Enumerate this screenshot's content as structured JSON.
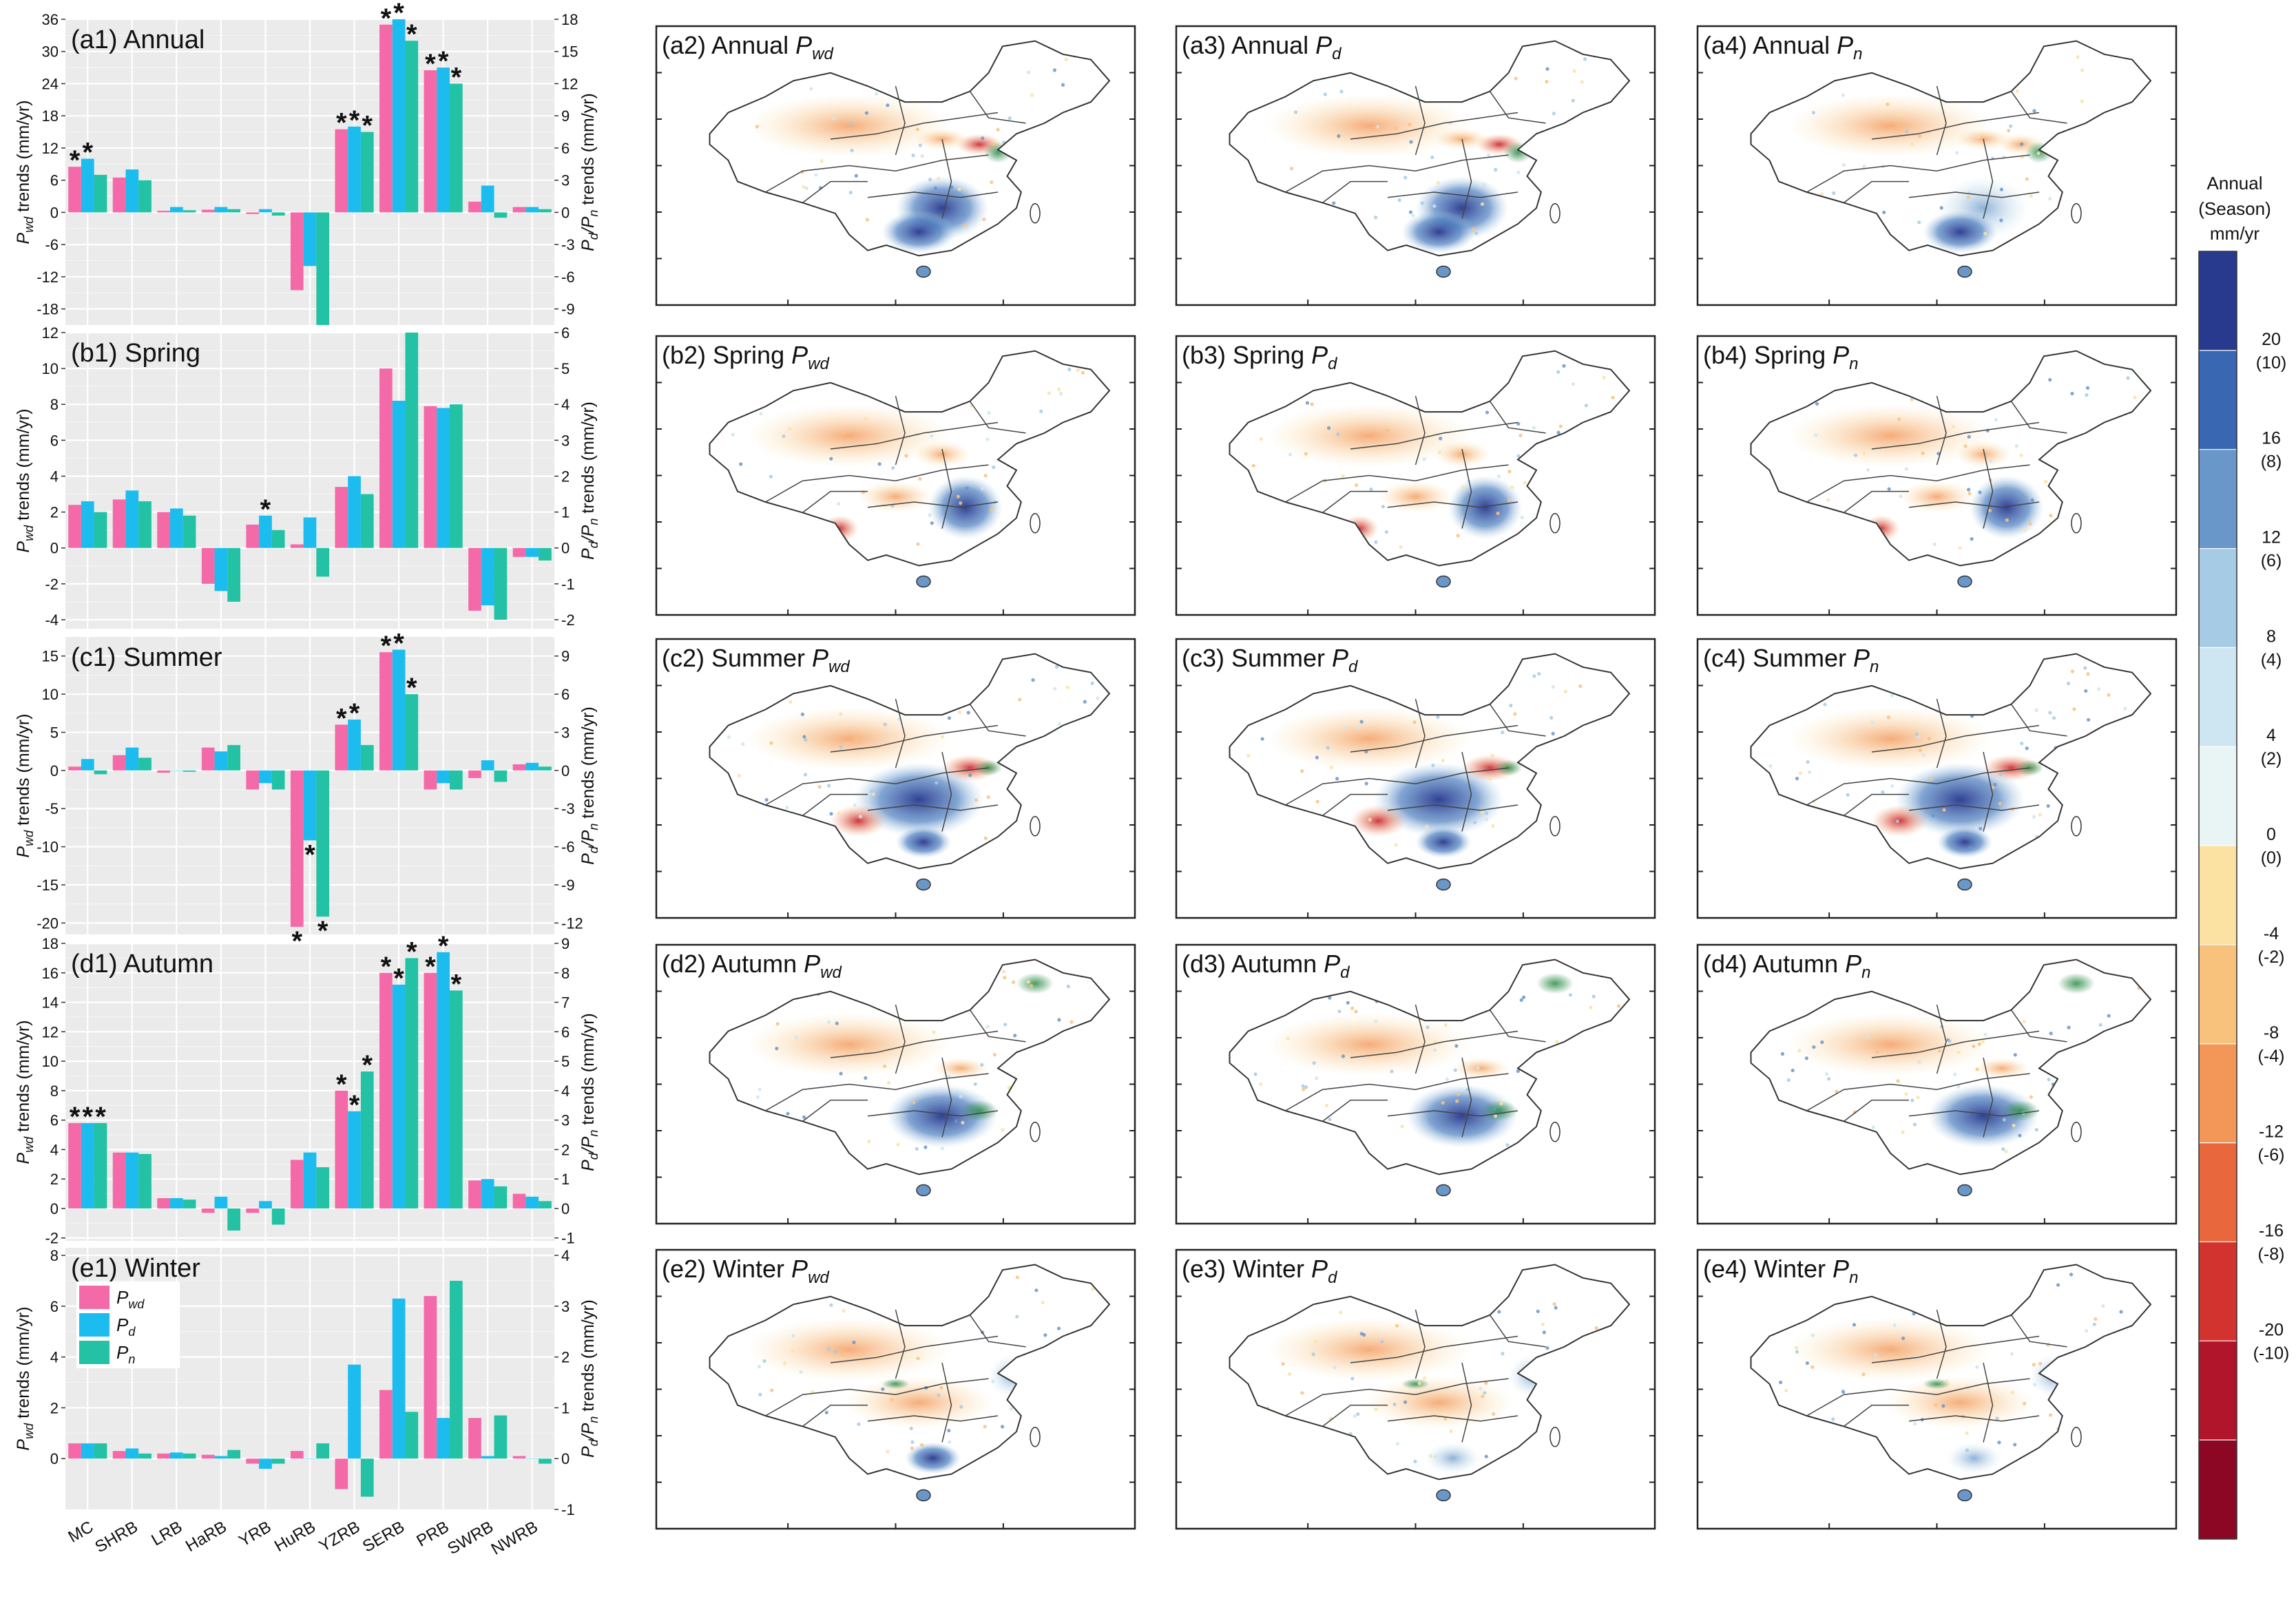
{
  "categories": [
    "MC",
    "SHRB",
    "LRB",
    "HaRB",
    "YRB",
    "HuRB",
    "YZRB",
    "SERB",
    "PRB",
    "SWRB",
    "NWRB"
  ],
  "series_names": [
    "P_wd",
    "P_d",
    "P_n"
  ],
  "series_colors": {
    "P_wd": "#f46aa8",
    "P_d": "#1cbcef",
    "P_n": "#23c2a4"
  },
  "left_axis_label_main": "P",
  "left_axis_label_sub": "wd",
  "left_axis_label_rest": " trends (mm/yr)",
  "right_axis_label_main": "P",
  "right_axis_label_sub": "d",
  "right_axis_label_mid": "/P",
  "right_axis_label_sub2": "n",
  "right_axis_label_rest": " trends (mm/yr)",
  "chart_data": [
    {
      "panel": "(a1) Annual",
      "type": "bar",
      "categories": [
        "MC",
        "SHRB",
        "LRB",
        "HaRB",
        "YRB",
        "HuRB",
        "YZRB",
        "SERB",
        "PRB",
        "SWRB",
        "NWRB"
      ],
      "left_ylim": [
        -21,
        36
      ],
      "left_ticks": [
        -18,
        -12,
        -6,
        0,
        6,
        12,
        18,
        24,
        30,
        36
      ],
      "right_ylim": [
        -10.5,
        18
      ],
      "right_ticks": [
        -9,
        -6,
        -3,
        0,
        3,
        6,
        9,
        12,
        15,
        18
      ],
      "series": [
        {
          "name": "P_wd",
          "axis": "left",
          "values": [
            8.5,
            6.5,
            0.3,
            0.5,
            -0.3,
            -14.5,
            15.5,
            35.0,
            26.5,
            2.0,
            1.0
          ]
        },
        {
          "name": "P_d",
          "axis": "right",
          "values": [
            5.0,
            4.0,
            0.5,
            0.5,
            0.3,
            -5.0,
            8.0,
            18.0,
            13.5,
            2.5,
            0.5
          ]
        },
        {
          "name": "P_n",
          "axis": "right",
          "values": [
            3.5,
            3.0,
            0.2,
            0.3,
            -0.3,
            -10.5,
            7.5,
            16.0,
            12.0,
            -0.5,
            0.3
          ]
        }
      ],
      "significance": [
        {
          "category": "MC",
          "series": "P_wd",
          "mark": "*"
        },
        {
          "category": "MC",
          "series": "P_d",
          "mark": "*"
        },
        {
          "category": "YZRB",
          "series": "P_wd",
          "mark": "*"
        },
        {
          "category": "YZRB",
          "series": "P_d",
          "mark": "*"
        },
        {
          "category": "YZRB",
          "series": "P_n",
          "mark": "*"
        },
        {
          "category": "SERB",
          "series": "P_wd",
          "mark": "*"
        },
        {
          "category": "SERB",
          "series": "P_d",
          "mark": "*"
        },
        {
          "category": "SERB",
          "series": "P_n",
          "mark": "*"
        },
        {
          "category": "PRB",
          "series": "P_wd",
          "mark": "*"
        },
        {
          "category": "PRB",
          "series": "P_d",
          "mark": "*"
        },
        {
          "category": "PRB",
          "series": "P_n",
          "mark": "*"
        }
      ]
    },
    {
      "panel": "(b1) Spring",
      "type": "bar",
      "categories": [
        "MC",
        "SHRB",
        "LRB",
        "HaRB",
        "YRB",
        "HuRB",
        "YZRB",
        "SERB",
        "PRB",
        "SWRB",
        "NWRB"
      ],
      "left_ylim": [
        -4.5,
        12
      ],
      "left_ticks": [
        -4,
        -2,
        0,
        2,
        4,
        6,
        8,
        10,
        12
      ],
      "right_ylim": [
        -2.25,
        6
      ],
      "right_ticks": [
        -2,
        -1,
        0,
        1,
        2,
        3,
        4,
        5,
        6
      ],
      "series": [
        {
          "name": "P_wd",
          "axis": "left",
          "values": [
            2.4,
            2.7,
            2.0,
            -2.0,
            1.3,
            0.2,
            3.4,
            10.0,
            7.9,
            -3.5,
            -0.5
          ]
        },
        {
          "name": "P_d",
          "axis": "right",
          "values": [
            1.3,
            1.6,
            1.1,
            -1.2,
            0.9,
            0.85,
            2.0,
            4.1,
            3.9,
            -1.6,
            -0.25
          ]
        },
        {
          "name": "P_n",
          "axis": "right",
          "values": [
            1.0,
            1.3,
            0.9,
            -1.5,
            0.5,
            -0.8,
            1.5,
            6.0,
            4.0,
            -2.0,
            -0.35
          ]
        }
      ],
      "significance": [
        {
          "category": "YRB",
          "series": "P_d",
          "mark": "*"
        }
      ]
    },
    {
      "panel": "(c1) Summer",
      "type": "bar",
      "categories": [
        "MC",
        "SHRB",
        "LRB",
        "HaRB",
        "YRB",
        "HuRB",
        "YZRB",
        "SERB",
        "PRB",
        "SWRB",
        "NWRB"
      ],
      "left_ylim": [
        -21.5,
        17.5
      ],
      "left_ticks": [
        -20,
        -15,
        -10,
        -5,
        0,
        5,
        10,
        15
      ],
      "right_ylim": [
        -12.9,
        10.5
      ],
      "right_ticks": [
        -12,
        -9,
        -6,
        -3,
        0,
        3,
        6,
        9
      ],
      "series": [
        {
          "name": "P_wd",
          "axis": "left",
          "values": [
            0.5,
            2.0,
            -0.3,
            3.0,
            -2.5,
            -20.5,
            6.0,
            15.5,
            -2.5,
            -1.0,
            0.8
          ]
        },
        {
          "name": "P_d",
          "axis": "right",
          "values": [
            0.9,
            1.8,
            0.0,
            1.5,
            -1.0,
            -5.5,
            4.0,
            9.5,
            -1.0,
            0.8,
            0.6
          ]
        },
        {
          "name": "P_n",
          "axis": "right",
          "values": [
            -0.3,
            1.0,
            -0.1,
            2.0,
            -1.5,
            -11.5,
            2.0,
            6.0,
            -1.5,
            -0.9,
            0.3
          ]
        }
      ],
      "significance": [
        {
          "category": "YZRB",
          "series": "P_wd",
          "mark": "*"
        },
        {
          "category": "YZRB",
          "series": "P_d",
          "mark": "*"
        },
        {
          "category": "SERB",
          "series": "P_wd",
          "mark": "*"
        },
        {
          "category": "SERB",
          "series": "P_d",
          "mark": "*"
        },
        {
          "category": "SERB",
          "series": "P_n",
          "mark": "*"
        },
        {
          "category": "HuRB",
          "series": "P_wd",
          "mark": "*"
        },
        {
          "category": "HuRB",
          "series": "P_d",
          "mark": "*"
        },
        {
          "category": "HuRB",
          "series": "P_n",
          "mark": "*"
        }
      ]
    },
    {
      "panel": "(d1) Autumn",
      "type": "bar",
      "categories": [
        "MC",
        "SHRB",
        "LRB",
        "HaRB",
        "YRB",
        "HuRB",
        "YZRB",
        "SERB",
        "PRB",
        "SWRB",
        "NWRB"
      ],
      "left_ylim": [
        -2.2,
        18
      ],
      "left_ticks": [
        -2,
        0,
        2,
        4,
        6,
        8,
        10,
        12,
        14,
        16,
        18
      ],
      "right_ylim": [
        -1.1,
        9
      ],
      "right_ticks": [
        -1,
        0,
        1,
        2,
        3,
        4,
        5,
        6,
        7,
        8,
        9
      ],
      "series": [
        {
          "name": "P_wd",
          "axis": "left",
          "values": [
            5.8,
            3.8,
            0.7,
            -0.3,
            -0.3,
            3.3,
            8.0,
            16.0,
            16.0,
            1.9,
            1.0
          ]
        },
        {
          "name": "P_d",
          "axis": "right",
          "values": [
            2.9,
            1.9,
            0.35,
            0.4,
            0.25,
            1.9,
            3.3,
            7.6,
            8.7,
            1.0,
            0.4
          ]
        },
        {
          "name": "P_n",
          "axis": "right",
          "values": [
            2.9,
            1.85,
            0.3,
            -0.75,
            -0.55,
            1.4,
            4.65,
            8.5,
            7.4,
            0.75,
            0.25
          ]
        }
      ],
      "significance": [
        {
          "category": "MC",
          "series": "P_wd",
          "mark": "*"
        },
        {
          "category": "MC",
          "series": "P_d",
          "mark": "*"
        },
        {
          "category": "MC",
          "series": "P_n",
          "mark": "*"
        },
        {
          "category": "YZRB",
          "series": "P_wd",
          "mark": "*"
        },
        {
          "category": "YZRB",
          "series": "P_d",
          "mark": "*"
        },
        {
          "category": "YZRB",
          "series": "P_n",
          "mark": "*"
        },
        {
          "category": "SERB",
          "series": "P_wd",
          "mark": "*"
        },
        {
          "category": "SERB",
          "series": "P_d",
          "mark": "*"
        },
        {
          "category": "SERB",
          "series": "P_n",
          "mark": "*"
        },
        {
          "category": "PRB",
          "series": "P_wd",
          "mark": "*"
        },
        {
          "category": "PRB",
          "series": "P_d",
          "mark": "*"
        },
        {
          "category": "PRB",
          "series": "P_n",
          "mark": "*"
        }
      ]
    },
    {
      "panel": "(e1) Winter",
      "type": "bar",
      "categories": [
        "MC",
        "SHRB",
        "LRB",
        "HaRB",
        "YRB",
        "HuRB",
        "YZRB",
        "SERB",
        "PRB",
        "SWRB",
        "NWRB"
      ],
      "left_ylim": [
        -2,
        8.3
      ],
      "left_ticks": [
        0,
        2,
        4,
        6,
        8
      ],
      "right_ylim": [
        -1,
        4.15
      ],
      "right_ticks": [
        -1,
        0,
        1,
        2,
        3,
        4
      ],
      "series": [
        {
          "name": "P_wd",
          "axis": "left",
          "values": [
            0.6,
            0.3,
            0.2,
            0.15,
            -0.2,
            0.3,
            -1.2,
            2.7,
            6.4,
            1.6,
            0.1
          ]
        },
        {
          "name": "P_d",
          "axis": "right",
          "values": [
            0.3,
            0.2,
            0.12,
            0.05,
            -0.2,
            0.0,
            1.85,
            3.15,
            0.8,
            0.05,
            0.0
          ]
        },
        {
          "name": "P_n",
          "axis": "right",
          "values": [
            0.3,
            0.1,
            0.1,
            0.17,
            -0.1,
            0.3,
            -0.75,
            0.92,
            3.5,
            0.85,
            -0.1
          ]
        }
      ],
      "significance": []
    }
  ],
  "legend": {
    "items": [
      {
        "main": "P",
        "sub": "wd"
      },
      {
        "main": "P",
        "sub": "d"
      },
      {
        "main": "P",
        "sub": "n"
      }
    ]
  },
  "maps": {
    "rows": [
      {
        "id": "a",
        "season": "Annual",
        "labels": [
          "(a2) Annual ",
          "(a3) Annual ",
          "(a4) Annual "
        ]
      },
      {
        "id": "b",
        "season": "Spring",
        "labels": [
          "(b2) Spring ",
          "(b3) Spring ",
          "(b4) Spring "
        ]
      },
      {
        "id": "c",
        "season": "Summer",
        "labels": [
          "(c2) Summer ",
          "(c3) Summer ",
          "(c4) Summer "
        ]
      },
      {
        "id": "d",
        "season": "Autumn",
        "labels": [
          "(d2) Autumn ",
          "(d3) Autumn ",
          "(d4) Autumn "
        ]
      },
      {
        "id": "e",
        "season": "Winter",
        "labels": [
          "(e2) Winter ",
          "(e3) Winter ",
          "(e4) Winter "
        ]
      }
    ],
    "var_main": "P",
    "var_subs": [
      "wd",
      "d",
      "n"
    ]
  },
  "colorbar": {
    "title_line1": "Annual",
    "title_line2": "(Season)",
    "unit": "mm/yr",
    "colors": [
      "#273a8d",
      "#3967b1",
      "#6a97c9",
      "#a6cbe5",
      "#cde6f1",
      "#e9f5f4",
      "#fbe2a3",
      "#f9c27c",
      "#f39758",
      "#e9673d",
      "#d2332e",
      "#b0152c",
      "#8c0724"
    ],
    "tick_labels": [
      {
        "annual": "20",
        "season": "(10)"
      },
      {
        "annual": "16",
        "season": "(8)"
      },
      {
        "annual": "12",
        "season": "(6)"
      },
      {
        "annual": "8",
        "season": "(4)"
      },
      {
        "annual": "4",
        "season": "(2)"
      },
      {
        "annual": "0",
        "season": "(0)"
      },
      {
        "annual": "-4",
        "season": "(-2)"
      },
      {
        "annual": "-8",
        "season": "(-4)"
      },
      {
        "annual": "-12",
        "season": "(-6)"
      },
      {
        "annual": "-16",
        "season": "(-8)"
      },
      {
        "annual": "-20",
        "season": "(-10)"
      }
    ]
  }
}
